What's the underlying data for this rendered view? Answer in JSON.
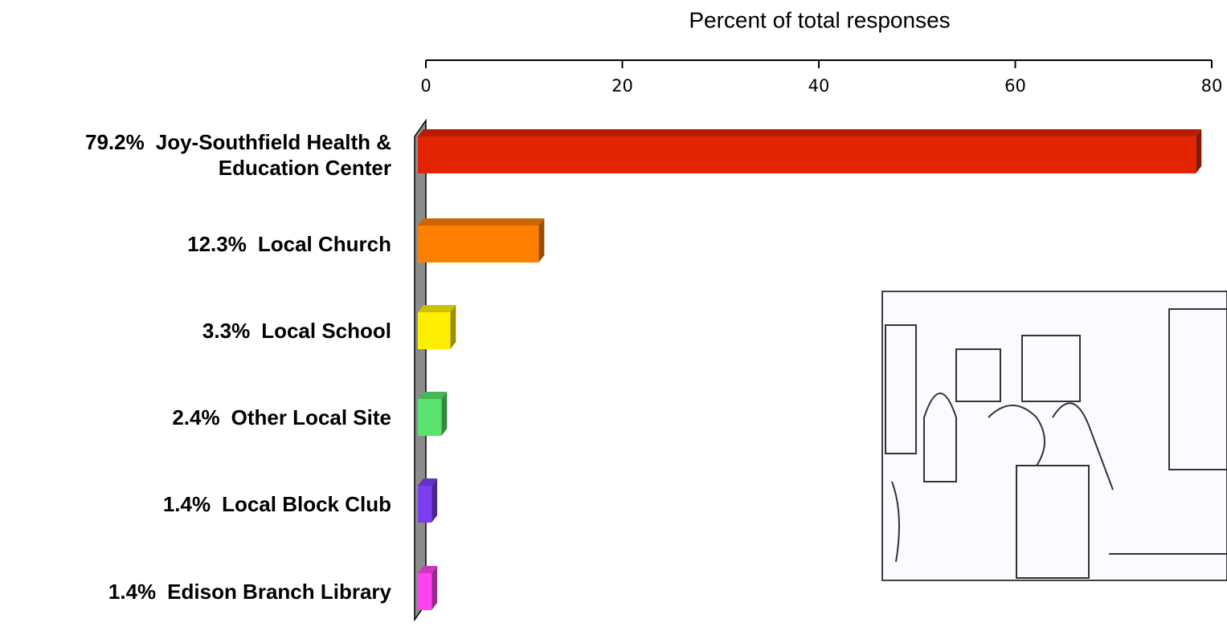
{
  "chart_data": {
    "type": "bar",
    "orientation": "horizontal",
    "x_label": "Percent of total responses",
    "categories": [
      "Joy-Southfield Health & Education Center",
      "Local Church",
      "Local School",
      "Other Local Site",
      "Local Block Club",
      "Edison Branch Library"
    ],
    "values": [
      79.2,
      12.3,
      3.3,
      2.4,
      1.4,
      1.4
    ],
    "value_labels": [
      "79.2%",
      "12.3%",
      "3.3%",
      "2.4%",
      "1.4%",
      "1.4%"
    ],
    "colors": [
      "#e32400",
      "#ff7f00",
      "#ffef00",
      "#5ae36e",
      "#7b3ff2",
      "#ff44f0"
    ],
    "xlim": [
      0,
      80
    ],
    "xticks": [
      0,
      20,
      40,
      60,
      80
    ],
    "axis_position": "top"
  }
}
